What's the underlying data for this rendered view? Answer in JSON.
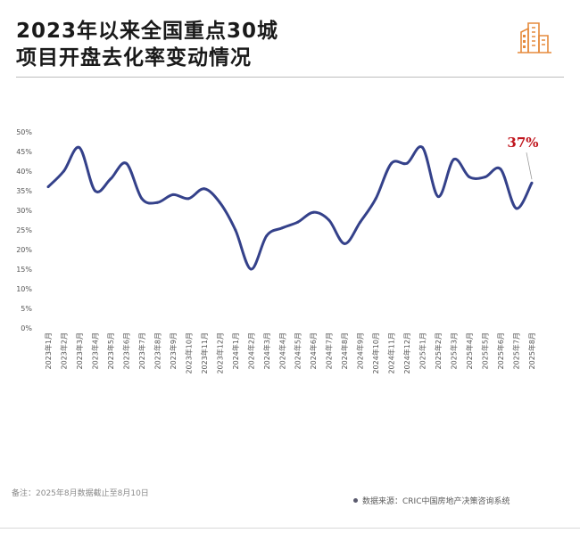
{
  "header": {
    "title_line1": "2023年以来全国重点30城",
    "title_line2": "项目开盘去化率变动情况"
  },
  "footer": {
    "note": "备注：2025年8月数据截止至8月10日",
    "source": "数据来源：CRIC中国房地产决策咨询系统"
  },
  "colors": {
    "line": "#34418a",
    "annotation": "#c0141c",
    "axis_text": "#555555"
  },
  "chart_data": {
    "type": "line",
    "x": [
      "2023年1月",
      "2023年2月",
      "2023年3月",
      "2023年4月",
      "2023年5月",
      "2023年6月",
      "2023年7月",
      "2023年8月",
      "2023年9月",
      "2023年10月",
      "2023年11月",
      "2023年12月",
      "2024年1月",
      "2024年2月",
      "2024年3月",
      "2024年4月",
      "2024年5月",
      "2024年6月",
      "2024年7月",
      "2024年8月",
      "2024年9月",
      "2024年10月",
      "2024年11月",
      "2024年12月",
      "2025年1月",
      "2025年2月",
      "2025年3月",
      "2025年4月",
      "2025年5月",
      "2025年6月",
      "2025年7月",
      "2025年8月"
    ],
    "series": [
      {
        "values": [
          36,
          40,
          46,
          35,
          38,
          42,
          33,
          32,
          34,
          33,
          35.5,
          32,
          25,
          15,
          23.5,
          25.5,
          27,
          29.5,
          27.5,
          21.5,
          27,
          33,
          42,
          42,
          46,
          33.5,
          43,
          38.5,
          38.5,
          40.5,
          30.5,
          37
        ]
      }
    ],
    "ylim": [
      0,
      50
    ],
    "yticks": [
      "0%",
      "5%",
      "10%",
      "15%",
      "20%",
      "25%",
      "30%",
      "35%",
      "40%",
      "45%",
      "50%"
    ],
    "annotation": {
      "label": "37%",
      "index": 31
    },
    "grid": false,
    "legend": "none"
  }
}
